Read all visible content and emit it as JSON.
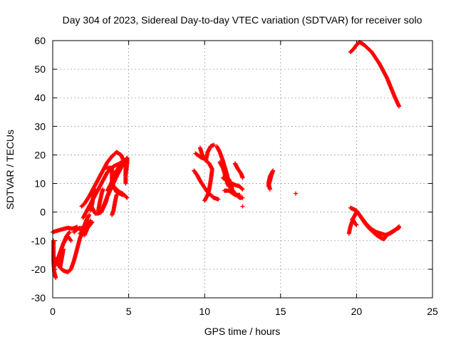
{
  "chart_data": {
    "type": "scatter",
    "title": "Day 304 of 2023, Sidereal Day-to-day VTEC variation (SDTVAR) for receiver solo",
    "xlabel": "GPS time / hours",
    "ylabel": "SDTVAR / TECUs",
    "xlim": [
      0,
      25
    ],
    "ylim": [
      -30,
      60
    ],
    "xticks": [
      0,
      5,
      10,
      15,
      20,
      25
    ],
    "yticks": [
      -30,
      -20,
      -10,
      0,
      10,
      20,
      30,
      40,
      50,
      60
    ],
    "grid": true,
    "marker": "+",
    "series": [
      {
        "name": "SDTVAR",
        "color": "#ff0000",
        "tracks": [
          [
            [
              0.0,
              -7.0
            ],
            [
              0.5,
              -6.2
            ],
            [
              1.0,
              -5.5
            ],
            [
              1.3,
              -5.8
            ],
            [
              1.6,
              -5.2
            ]
          ],
          [
            [
              0.05,
              -10.0
            ],
            [
              0.05,
              -14.0
            ],
            [
              0.05,
              -17.0
            ],
            [
              0.1,
              -21.0
            ],
            [
              0.2,
              -23.0
            ]
          ],
          [
            [
              0.15,
              -16.0
            ],
            [
              0.3,
              -18.0
            ],
            [
              0.5,
              -19.5
            ],
            [
              0.7,
              -20.5
            ],
            [
              1.0,
              -21.0
            ],
            [
              1.2,
              -20.0
            ],
            [
              1.4,
              -17.0
            ],
            [
              1.6,
              -13.0
            ],
            [
              1.8,
              -9.0
            ],
            [
              2.0,
              -6.0
            ],
            [
              2.2,
              -3.0
            ],
            [
              2.4,
              -1.0
            ]
          ],
          [
            [
              0.1,
              -19.0
            ],
            [
              0.3,
              -17.0
            ],
            [
              0.5,
              -14.0
            ],
            [
              0.7,
              -11.0
            ],
            [
              0.9,
              -9.0
            ],
            [
              1.0,
              -8.5
            ],
            [
              1.2,
              -10.0
            ]
          ],
          [
            [
              0.3,
              -17.0
            ],
            [
              0.5,
              -14.0
            ],
            [
              0.7,
              -11.0
            ],
            [
              0.9,
              -8.5
            ],
            [
              1.1,
              -7.0
            ]
          ],
          [
            [
              0.5,
              -19.0
            ],
            [
              0.6,
              -16.0
            ],
            [
              0.7,
              -13.0
            ]
          ],
          [
            [
              1.4,
              -7.0
            ],
            [
              1.6,
              -6.0
            ],
            [
              1.8,
              -5.5
            ],
            [
              2.0,
              -8.0
            ]
          ],
          [
            [
              2.0,
              -5.0
            ],
            [
              2.1,
              -8.0
            ],
            [
              2.3,
              -5.5
            ],
            [
              2.6,
              -3.5
            ]
          ],
          [
            [
              2.0,
              -2.0
            ],
            [
              2.4,
              2.0
            ],
            [
              2.8,
              6.0
            ],
            [
              3.2,
              10.0
            ],
            [
              3.6,
              14.0
            ],
            [
              4.0,
              16.0
            ],
            [
              4.4,
              17.0
            ],
            [
              4.7,
              18.0
            ],
            [
              4.8,
              16.0
            ],
            [
              4.8,
              12.0
            ],
            [
              4.8,
              10.0
            ]
          ],
          [
            [
              1.9,
              2.0
            ],
            [
              2.1,
              3.0
            ],
            [
              2.4,
              5.5
            ],
            [
              2.8,
              9.5
            ],
            [
              3.2,
              13.5
            ],
            [
              3.6,
              17.5
            ],
            [
              3.9,
              19.5
            ],
            [
              4.2,
              21.0
            ],
            [
              4.5,
              20.0
            ],
            [
              4.7,
              17.5
            ]
          ],
          [
            [
              1.8,
              -7.5
            ],
            [
              2.0,
              -6.5
            ],
            [
              2.2,
              -4.5
            ],
            [
              2.5,
              -3.0
            ]
          ],
          [
            [
              2.5,
              0.5
            ],
            [
              2.6,
              3.0
            ],
            [
              2.7,
              6.5
            ],
            [
              2.8,
              8.0
            ]
          ],
          [
            [
              3.0,
              0.5
            ],
            [
              3.1,
              3.5
            ],
            [
              3.2,
              6.0
            ],
            [
              3.3,
              8.0
            ]
          ],
          [
            [
              3.3,
              1.5
            ],
            [
              3.6,
              5.5
            ],
            [
              3.9,
              9.0
            ],
            [
              4.3,
              13.5
            ],
            [
              4.7,
              17.5
            ]
          ],
          [
            [
              3.5,
              15.5
            ],
            [
              3.7,
              15.5
            ],
            [
              3.9,
              15.5
            ],
            [
              3.9,
              13.5
            ],
            [
              3.9,
              11.0
            ],
            [
              4.0,
              9.0
            ],
            [
              4.2,
              8.0
            ],
            [
              4.4,
              7.0
            ],
            [
              4.6,
              6.5
            ],
            [
              4.9,
              5.0
            ]
          ],
          [
            [
              3.6,
              7.5
            ],
            [
              3.8,
              9.5
            ],
            [
              4.0,
              12.0
            ],
            [
              4.2,
              14.5
            ],
            [
              4.4,
              16.0
            ],
            [
              4.6,
              17.0
            ],
            [
              4.9,
              19.0
            ],
            [
              4.9,
              17.0
            ],
            [
              4.8,
              13.0
            ]
          ],
          [
            [
              4.0,
              9.0
            ],
            [
              4.2,
              7.0
            ],
            [
              4.4,
              6.5
            ],
            [
              4.6,
              6.0
            ]
          ],
          [
            [
              2.5,
              2.5
            ],
            [
              2.8,
              -0.5
            ],
            [
              3.0,
              -0.5
            ],
            [
              3.2,
              0.0
            ],
            [
              3.5,
              3.5
            ],
            [
              3.6,
              5.5
            ],
            [
              3.8,
              8.5
            ]
          ],
          [
            [
              3.9,
              -1.0
            ],
            [
              4.0,
              0.5
            ],
            [
              4.1,
              3.5
            ],
            [
              4.2,
              6.0
            ]
          ],
          [
            [
              9.4,
              20.5
            ],
            [
              9.8,
              19.0
            ],
            [
              10.1,
              18.5
            ],
            [
              10.2,
              21.0
            ],
            [
              10.4,
              23.0
            ],
            [
              10.6,
              23.5
            ]
          ],
          [
            [
              9.3,
              14.5
            ],
            [
              9.5,
              13.0
            ],
            [
              9.7,
              11.0
            ],
            [
              10.0,
              8.5
            ],
            [
              10.2,
              7.0
            ],
            [
              10.4,
              6.0
            ],
            [
              10.6,
              5.0
            ],
            [
              10.9,
              4.5
            ]
          ],
          [
            [
              9.7,
              22.5
            ],
            [
              9.9,
              19.0
            ],
            [
              10.3,
              17.0
            ],
            [
              10.5,
              15.0
            ],
            [
              10.4,
              11.0
            ],
            [
              10.3,
              8.0
            ],
            [
              10.2,
              6.0
            ],
            [
              10.0,
              4.0
            ]
          ],
          [
            [
              10.8,
              23.0
            ],
            [
              11.0,
              21.0
            ],
            [
              11.2,
              18.0
            ],
            [
              11.4,
              14.5
            ],
            [
              11.5,
              12.5
            ],
            [
              11.6,
              10.5
            ],
            [
              11.8,
              8.0
            ],
            [
              12.0,
              6.5
            ],
            [
              12.3,
              5.0
            ],
            [
              12.5,
              5.0
            ]
          ],
          [
            [
              11.0,
              17.5
            ],
            [
              11.2,
              15.5
            ],
            [
              11.4,
              12.0
            ],
            [
              11.5,
              10.0
            ],
            [
              11.6,
              9.0
            ]
          ],
          [
            [
              11.2,
              12.0
            ],
            [
              11.5,
              11.0
            ],
            [
              11.8,
              10.0
            ],
            [
              12.0,
              9.5
            ],
            [
              12.3,
              9.0
            ],
            [
              12.5,
              8.0
            ]
          ],
          [
            [
              11.3,
              7.5
            ],
            [
              11.6,
              7.5
            ],
            [
              12.0,
              6.0
            ],
            [
              12.3,
              6.0
            ]
          ],
          [
            [
              11.6,
              11.5
            ],
            [
              11.7,
              10.0
            ],
            [
              11.8,
              8.5
            ]
          ],
          [
            [
              12.0,
              17.0
            ],
            [
              12.1,
              16.0
            ],
            [
              12.2,
              15.0
            ],
            [
              12.4,
              13.5
            ],
            [
              12.5,
              12.0
            ]
          ],
          [
            [
              12.5,
              2.0
            ]
          ],
          [
            [
              14.2,
              9.0
            ],
            [
              14.3,
              11.0
            ],
            [
              14.4,
              13.0
            ],
            [
              14.5,
              14.5
            ],
            [
              14.3,
              12.5
            ],
            [
              14.2,
              10.0
            ],
            [
              14.3,
              8.0
            ]
          ],
          [
            [
              16.0,
              6.5
            ]
          ],
          [
            [
              19.6,
              56.0
            ],
            [
              19.8,
              57.0
            ],
            [
              20.0,
              58.5
            ],
            [
              20.2,
              59.5
            ],
            [
              20.5,
              58.5
            ],
            [
              21.0,
              56.0
            ],
            [
              21.5,
              52.0
            ],
            [
              22.0,
              47.0
            ],
            [
              22.5,
              40.5
            ],
            [
              22.8,
              37.0
            ]
          ],
          [
            [
              19.6,
              1.5
            ],
            [
              19.8,
              1.0
            ],
            [
              20.0,
              0.5
            ],
            [
              20.2,
              -1.0
            ],
            [
              20.5,
              -3.5
            ],
            [
              20.8,
              -5.5
            ],
            [
              21.0,
              -6.5
            ],
            [
              21.3,
              -8.0
            ],
            [
              21.6,
              -9.0
            ],
            [
              21.8,
              -9.5
            ],
            [
              22.0,
              -8.0
            ],
            [
              22.3,
              -7.0
            ],
            [
              22.6,
              -6.0
            ],
            [
              22.8,
              -5.5
            ]
          ],
          [
            [
              19.5,
              -7.5
            ],
            [
              19.6,
              -5.0
            ],
            [
              19.8,
              -2.0
            ],
            [
              20.0,
              0.0
            ],
            [
              20.2,
              -1.0
            ],
            [
              20.4,
              -2.5
            ],
            [
              20.7,
              -4.5
            ],
            [
              21.0,
              -6.0
            ],
            [
              21.3,
              -7.0
            ],
            [
              21.6,
              -7.5
            ],
            [
              21.9,
              -8.0
            ],
            [
              22.2,
              -7.5
            ],
            [
              22.5,
              -6.5
            ],
            [
              22.8,
              -5.0
            ]
          ],
          [
            [
              19.7,
              -2.5
            ],
            [
              19.8,
              -3.0
            ],
            [
              19.9,
              -4.0
            ],
            [
              20.0,
              -4.5
            ]
          ]
        ]
      }
    ]
  }
}
